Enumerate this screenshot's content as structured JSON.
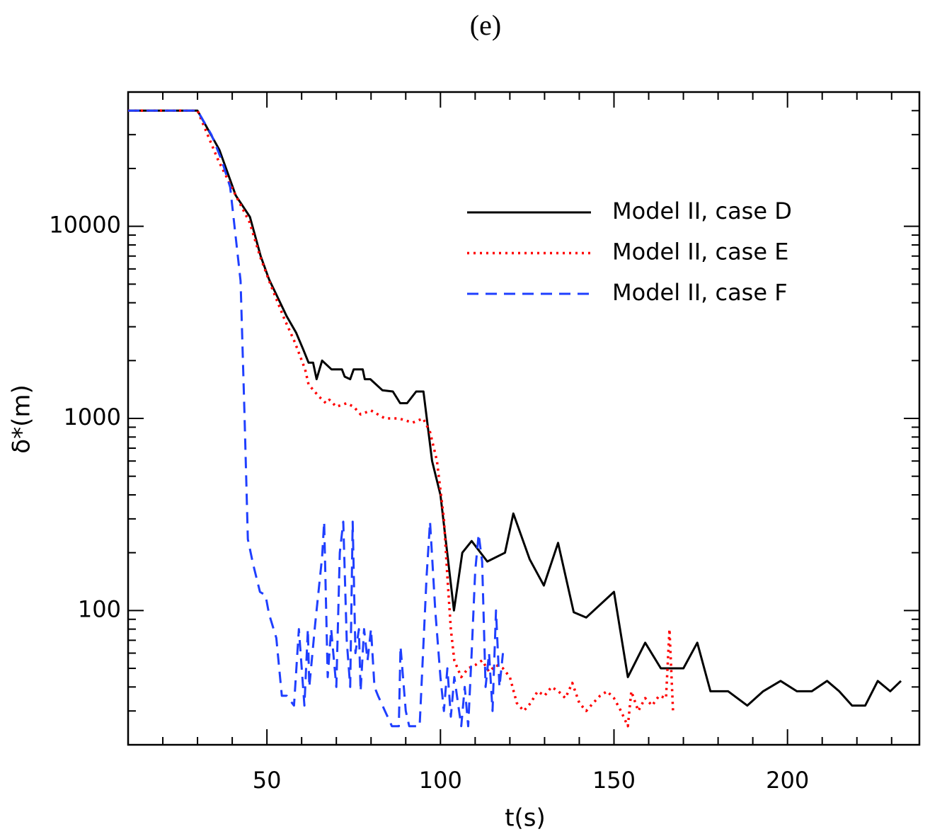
{
  "chart_data": {
    "type": "line",
    "title": "(e)",
    "xlabel": "t(s)",
    "ylabel": "δ*(m)",
    "xlim": [
      10,
      238
    ],
    "ylim": [
      20,
      50000
    ],
    "ylog": true,
    "xticks": [
      50,
      100,
      150,
      200
    ],
    "xminorticks": [
      20,
      30,
      40,
      60,
      70,
      80,
      90,
      110,
      120,
      130,
      140,
      160,
      170,
      180,
      190,
      210,
      220,
      230
    ],
    "yticks": [
      100,
      1000,
      10000
    ],
    "yminorticks": [
      30,
      40,
      50,
      60,
      70,
      80,
      90,
      200,
      300,
      400,
      500,
      600,
      700,
      800,
      900,
      2000,
      3000,
      4000,
      5000,
      6000,
      7000,
      8000,
      9000,
      20000,
      30000,
      40000
    ],
    "legend": "upper right",
    "series": [
      {
        "name": "Model II, case D",
        "color": "#000000",
        "style": "solid",
        "x": [
          10,
          30,
          36.3,
          41,
          45.1,
          48.2,
          50.6,
          53,
          55.7,
          58.4,
          60.4,
          62,
          63.3,
          64.3,
          65.9,
          68.6,
          71.6,
          72.4,
          74,
          75,
          77.6,
          78.2,
          79.8,
          83.3,
          86.3,
          88.4,
          90.4,
          93,
          95.1,
          97.6,
          100,
          103.9,
          106.3,
          109,
          113.5,
          118.6,
          121,
          125.7,
          129.8,
          133.9,
          138.4,
          142,
          150,
          154,
          159,
          163.5,
          170,
          174,
          177.8,
          182.9,
          188.4,
          193,
          198,
          202.7,
          207,
          211.4,
          214.9,
          218.6,
          222.4,
          226,
          229.6,
          232.7
        ],
        "values": [
          40000,
          40000,
          25000,
          14500,
          11200,
          7000,
          5300,
          4300,
          3400,
          2800,
          2300,
          1950,
          1950,
          1600,
          2000,
          1800,
          1800,
          1650,
          1600,
          1800,
          1800,
          1600,
          1600,
          1400,
          1380,
          1200,
          1200,
          1380,
          1380,
          600,
          400,
          100,
          200,
          230,
          180,
          200,
          320,
          185,
          135,
          225,
          98,
          92,
          125,
          45,
          68,
          50,
          50,
          68,
          38,
          38,
          32,
          38,
          43,
          38,
          38,
          43,
          38,
          32,
          32,
          43,
          38,
          43
        ]
      },
      {
        "name": "Model II, case E",
        "color": "#ff0000",
        "style": "dotted",
        "x": [
          10,
          30,
          36,
          41,
          45,
          48,
          51,
          55,
          58,
          61,
          62,
          65,
          67,
          68,
          70,
          73,
          75,
          77,
          80,
          84,
          88,
          92,
          95,
          97,
          99,
          101,
          102,
          103,
          104,
          106,
          108,
          110,
          112,
          114,
          116,
          118,
          120,
          122,
          124,
          126,
          128,
          130,
          132,
          134,
          136,
          138,
          140,
          142,
          144,
          146,
          148,
          150,
          152,
          154,
          155,
          157,
          159,
          161,
          163,
          165,
          166,
          167
        ],
        "values": [
          40000,
          40000,
          22000,
          14500,
          10500,
          7000,
          5000,
          3300,
          2500,
          1800,
          1500,
          1300,
          1200,
          1250,
          1150,
          1200,
          1150,
          1050,
          1100,
          1000,
          1000,
          950,
          1000,
          850,
          600,
          300,
          150,
          80,
          55,
          45,
          50,
          52,
          55,
          48,
          52,
          50,
          45,
          33,
          30,
          33,
          38,
          36,
          40,
          38,
          35,
          42,
          33,
          30,
          33,
          36,
          38,
          35,
          30,
          25,
          38,
          30,
          35,
          32,
          36,
          35,
          80,
          30
        ]
      },
      {
        "name": "Model II, case F",
        "color": "#1f3fff",
        "style": "dashed",
        "x": [
          10,
          30,
          34,
          37,
          39.4,
          42.4,
          43.5,
          44.5,
          46,
          48,
          49.6,
          50.6,
          52.7,
          54.3,
          55.7,
          57.8,
          59.2,
          60.8,
          61.8,
          62.2,
          63.9,
          65.9,
          66.5,
          67.5,
          68.5,
          70,
          71,
          72,
          73,
          74,
          74.7,
          75.5,
          76.5,
          77,
          78,
          79,
          80,
          81,
          82,
          84,
          86,
          88,
          88.5,
          90,
          91,
          93,
          94,
          96,
          97,
          98.5,
          100,
          101,
          102,
          103,
          104,
          106,
          107,
          108,
          109,
          110,
          111,
          112,
          113,
          114,
          115,
          116,
          117,
          118
        ],
        "values": [
          40000,
          40000,
          30000,
          22000,
          16000,
          5200,
          1100,
          235,
          175,
          125,
          120,
          96,
          72,
          36,
          36,
          32,
          80,
          32,
          80,
          40,
          85,
          190,
          290,
          45,
          80,
          40,
          200,
          290,
          70,
          40,
          290,
          60,
          80,
          38,
          80,
          55,
          80,
          40,
          36,
          30,
          25,
          25,
          65,
          30,
          25,
          25,
          25,
          150,
          290,
          100,
          45,
          30,
          50,
          28,
          45,
          25,
          40,
          25,
          60,
          160,
          250,
          180,
          40,
          60,
          30,
          100,
          40,
          60
        ]
      }
    ]
  }
}
